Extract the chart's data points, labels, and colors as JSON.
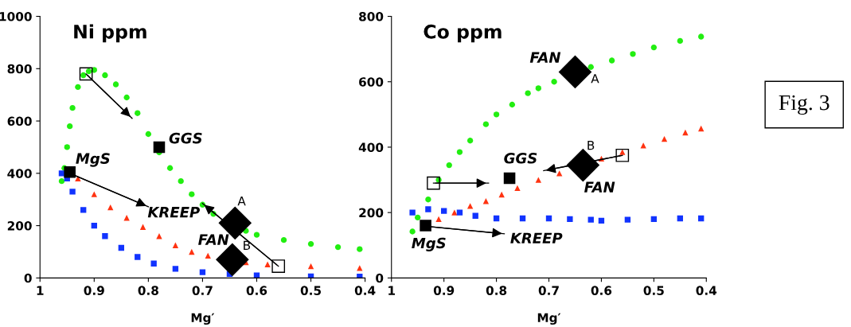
{
  "chart_data": [
    {
      "type": "scatter",
      "title": "Ni ppm",
      "xlabel": "Mg′",
      "xlim": [
        1,
        0.4
      ],
      "xticks": [
        1,
        0.9,
        0.8,
        0.7,
        0.6,
        0.5,
        0.4
      ],
      "ylim": [
        0,
        1000
      ],
      "yticks": [
        0,
        200,
        400,
        600,
        800,
        1000
      ],
      "grid": false,
      "series": [
        {
          "color": "#22ee11",
          "marker": "circle",
          "x": [
            0.96,
            0.955,
            0.95,
            0.945,
            0.94,
            0.93,
            0.92,
            0.91,
            0.9,
            0.88,
            0.86,
            0.84,
            0.82,
            0.8,
            0.78,
            0.76,
            0.74,
            0.72,
            0.7,
            0.68,
            0.62,
            0.6,
            0.55,
            0.5,
            0.45,
            0.41
          ],
          "values": [
            370,
            420,
            500,
            580,
            650,
            730,
            775,
            790,
            795,
            775,
            740,
            690,
            630,
            550,
            480,
            420,
            370,
            320,
            280,
            245,
            180,
            165,
            145,
            130,
            118,
            110
          ]
        },
        {
          "color": "#ff3311",
          "marker": "triangle",
          "x": [
            0.93,
            0.9,
            0.87,
            0.84,
            0.81,
            0.78,
            0.75,
            0.72,
            0.69,
            0.62,
            0.58,
            0.5,
            0.41
          ],
          "values": [
            380,
            320,
            270,
            230,
            195,
            160,
            125,
            100,
            85,
            60,
            52,
            45,
            38
          ]
        },
        {
          "color": "#1133ff",
          "marker": "square",
          "x": [
            0.96,
            0.95,
            0.94,
            0.92,
            0.9,
            0.88,
            0.85,
            0.82,
            0.79,
            0.75,
            0.7,
            0.65,
            0.6,
            0.5,
            0.41
          ],
          "values": [
            400,
            380,
            330,
            260,
            200,
            160,
            115,
            80,
            55,
            35,
            22,
            15,
            10,
            6,
            5
          ]
        },
        {
          "color": "#000000",
          "marker": "square",
          "x": [
            0.945,
            0.78
          ],
          "values": [
            405,
            500
          ]
        },
        {
          "color": "#000000",
          "marker": "diamond",
          "x": [
            0.64,
            0.645
          ],
          "values": [
            210,
            70
          ]
        },
        {
          "type": "line",
          "color": "#000000",
          "marker": "square",
          "x": [
            0.915,
            0.83
          ],
          "values": [
            780,
            610
          ]
        },
        {
          "type": "line",
          "color": "#000000",
          "marker": "none",
          "x": [
            0.945,
            0.8
          ],
          "values": [
            400,
            272
          ]
        },
        {
          "type": "line",
          "color": "#000000",
          "marker": "square",
          "x": [
            0.56,
            0.7
          ],
          "values": [
            45,
            285
          ]
        }
      ],
      "annotations": [
        {
          "text": "MgS",
          "x": 0.945,
          "y": 405
        },
        {
          "text": "GGS",
          "x": 0.78,
          "y": 500
        },
        {
          "text": "KREEP",
          "x": 0.8,
          "y": 272
        },
        {
          "text": "FAN",
          "x": 0.645,
          "y": 70
        },
        {
          "text": "A",
          "x": 0.64,
          "y": 210
        },
        {
          "text": "B",
          "x": 0.645,
          "y": 70
        }
      ]
    },
    {
      "type": "scatter",
      "title": "Co ppm",
      "xlabel": "Mg′",
      "xlim": [
        1,
        0.4
      ],
      "xticks": [
        1,
        0.9,
        0.8,
        0.7,
        0.6,
        0.5,
        0.4
      ],
      "ylim": [
        0,
        800
      ],
      "yticks": [
        0,
        200,
        400,
        600,
        800
      ],
      "grid": false,
      "series": [
        {
          "color": "#22ee11",
          "marker": "circle",
          "x": [
            0.96,
            0.95,
            0.93,
            0.91,
            0.89,
            0.87,
            0.85,
            0.82,
            0.8,
            0.77,
            0.74,
            0.72,
            0.69,
            0.62,
            0.58,
            0.54,
            0.5,
            0.45,
            0.41
          ],
          "values": [
            142,
            185,
            240,
            300,
            345,
            385,
            420,
            470,
            500,
            530,
            565,
            580,
            600,
            645,
            665,
            685,
            705,
            725,
            738
          ]
        },
        {
          "color": "#ff3311",
          "marker": "triangle",
          "x": [
            0.91,
            0.88,
            0.85,
            0.82,
            0.79,
            0.76,
            0.72,
            0.68,
            0.6,
            0.56,
            0.52,
            0.48,
            0.44,
            0.41
          ],
          "values": [
            180,
            200,
            220,
            235,
            255,
            275,
            300,
            320,
            365,
            385,
            405,
            425,
            445,
            457
          ]
        },
        {
          "color": "#1133ff",
          "marker": "square",
          "x": [
            0.96,
            0.93,
            0.9,
            0.87,
            0.84,
            0.8,
            0.75,
            0.7,
            0.66,
            0.62,
            0.6,
            0.55,
            0.5,
            0.45,
            0.41
          ],
          "values": [
            200,
            210,
            205,
            200,
            190,
            182,
            182,
            182,
            180,
            178,
            175,
            178,
            180,
            182,
            182
          ]
        },
        {
          "color": "#000000",
          "marker": "square",
          "x": [
            0.935,
            0.775
          ],
          "values": [
            160,
            305
          ]
        },
        {
          "color": "#000000",
          "marker": "diamond",
          "x": [
            0.65,
            0.635
          ],
          "values": [
            630,
            345
          ]
        },
        {
          "type": "line",
          "color": "#000000",
          "marker": "square",
          "x": [
            0.92,
            0.815
          ],
          "values": [
            290,
            290
          ]
        },
        {
          "type": "line",
          "color": "#000000",
          "marker": "none",
          "x": [
            0.935,
            0.785
          ],
          "values": [
            158,
            135
          ]
        },
        {
          "type": "line",
          "color": "#000000",
          "marker": "square",
          "x": [
            0.56,
            0.71
          ],
          "values": [
            375,
            328
          ]
        }
      ],
      "annotations": [
        {
          "text": "FAN",
          "x": 0.65,
          "y": 630
        },
        {
          "text": "A",
          "x": 0.65,
          "y": 630
        },
        {
          "text": "GGS",
          "x": 0.775,
          "y": 305
        },
        {
          "text": "B",
          "x": 0.635,
          "y": 345
        },
        {
          "text": "FAN",
          "x": 0.635,
          "y": 345
        },
        {
          "text": "MgS",
          "x": 0.935,
          "y": 160
        },
        {
          "text": "KREEP",
          "x": 0.785,
          "y": 135
        }
      ]
    },
    {
      "type": "other",
      "annotations": [
        "Fig. 3"
      ]
    }
  ]
}
